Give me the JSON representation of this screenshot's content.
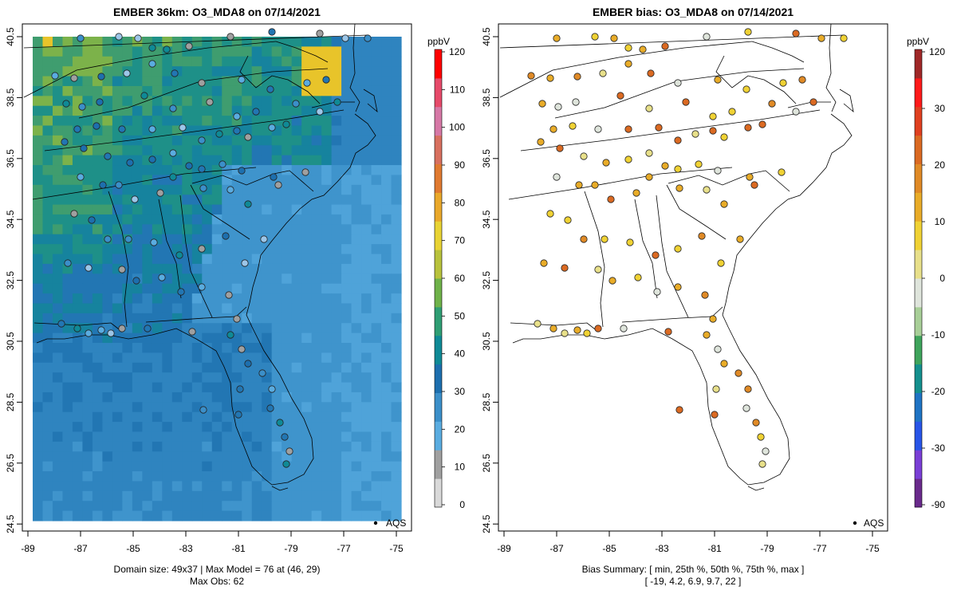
{
  "panels": [
    {
      "title": "EMBER 36km: O3_MDA8 on 07/14/2021",
      "caption_lines": [
        "Domain size: 49x37 | Max Model = 76 at (46, 29)",
        "Max Obs: 62"
      ],
      "legend_label": "AQS",
      "colorbar": {
        "unit": "ppbV",
        "ticks": [
          "120",
          "110",
          "100",
          "90",
          "80",
          "70",
          "60",
          "50",
          "40",
          "30",
          "20",
          "10",
          "0"
        ],
        "colors": [
          "#d9d9d9",
          "#a0a0a0",
          "#5aace0",
          "#3b8fc9",
          "#1d6fae",
          "#0f8a96",
          "#2f9e74",
          "#6fb24a",
          "#b8c23c",
          "#e8d334",
          "#e9a82a",
          "#e07a30",
          "#d8705f",
          "#d678a6",
          "#e64a6a",
          "#ff0000"
        ]
      },
      "longitude_ticks": [
        "-89",
        "-87",
        "-85",
        "-83",
        "-81",
        "-79",
        "-77",
        "-75"
      ],
      "latitude_ticks": [
        "40.5",
        "38.5",
        "36.5",
        "34.5",
        "32.5",
        "30.5",
        "28.5",
        "26.5",
        "24.5"
      ]
    },
    {
      "title": "EMBER bias: O3_MDA8 on 07/14/2021",
      "caption_lines": [
        "Bias Summary: [ min, 25th %, 50th %, 75th %, max ]",
        "[ -19,  4.2,  6.9,  9.7,  22 ]"
      ],
      "legend_label": "AQS",
      "colorbar": {
        "unit": "ppbV",
        "ticks": [
          "120",
          "30",
          "20",
          "10",
          "0",
          "-10",
          "-20",
          "-30",
          "-90"
        ],
        "colors": [
          "#6a2a8c",
          "#7a3fd6",
          "#2855e8",
          "#1f74c4",
          "#14908e",
          "#3fa45c",
          "#a8cf98",
          "#dfe5dc",
          "#e8e08a",
          "#f0d234",
          "#e9ac28",
          "#e08a26",
          "#db6a22",
          "#e04020",
          "#ff1a1a",
          "#a02828"
        ]
      },
      "longitude_ticks": [
        "-89",
        "-87",
        "-85",
        "-83",
        "-81",
        "-79",
        "-77",
        "-75"
      ],
      "latitude_ticks": [
        "40.5",
        "38.5",
        "36.5",
        "34.5",
        "32.5",
        "30.5",
        "28.5",
        "26.5",
        "24.5"
      ]
    }
  ]
}
